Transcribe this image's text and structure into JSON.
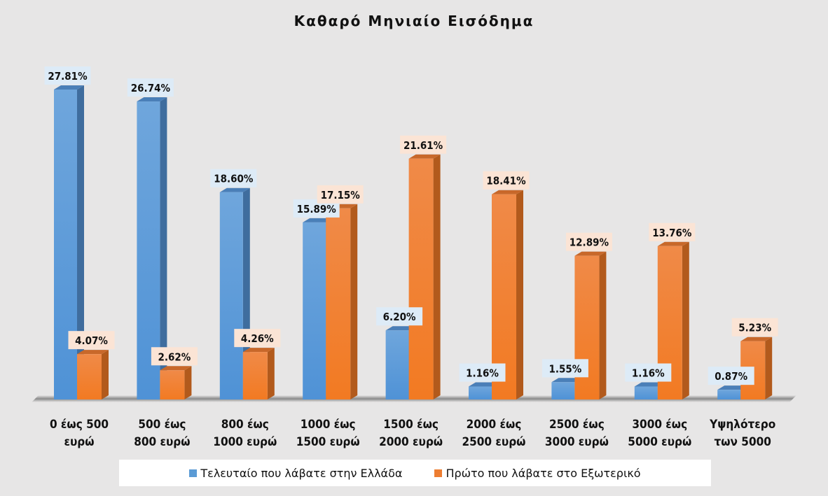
{
  "chart_data": {
    "type": "bar",
    "title": "Καθαρό Μηνιαίο Εισόδημα",
    "categories": [
      [
        "0 έως 500",
        "ευρώ"
      ],
      [
        "500 έως",
        "800 ευρώ"
      ],
      [
        "800 έως",
        "1000 ευρώ"
      ],
      [
        "1000 έως",
        "1500 ευρώ"
      ],
      [
        "1500 έως",
        "2000 ευρώ"
      ],
      [
        "2000 έως",
        "2500 ευρώ"
      ],
      [
        "2500 έως",
        "3000 ευρώ"
      ],
      [
        "3000 έως",
        "5000 ευρώ"
      ],
      [
        "Υψηλότερο",
        "των 5000"
      ]
    ],
    "series": [
      {
        "name": "Τελευταίο που λάβατε στην Ελλάδα",
        "color": "#5b9bd5",
        "values": [
          27.81,
          26.74,
          18.6,
          15.89,
          6.2,
          1.16,
          1.55,
          1.16,
          0.87
        ],
        "labels": [
          "27.81%",
          "26.74%",
          "18.60%",
          "15.89%",
          "6.20%",
          "1.16%",
          "1.55%",
          "1.16%",
          "0.87%"
        ]
      },
      {
        "name": "Πρώτο που λάβατε στο Εξωτερικό",
        "color": "#ed7d31",
        "values": [
          4.07,
          2.62,
          4.26,
          17.15,
          21.61,
          18.41,
          12.89,
          13.76,
          5.23
        ],
        "labels": [
          "4.07%",
          "2.62%",
          "4.26%",
          "17.15%",
          "21.61%",
          "18.41%",
          "12.89%",
          "13.76%",
          "5.23%"
        ]
      }
    ],
    "ylim": [
      0,
      30
    ],
    "grid": false,
    "legend": "bottom"
  }
}
